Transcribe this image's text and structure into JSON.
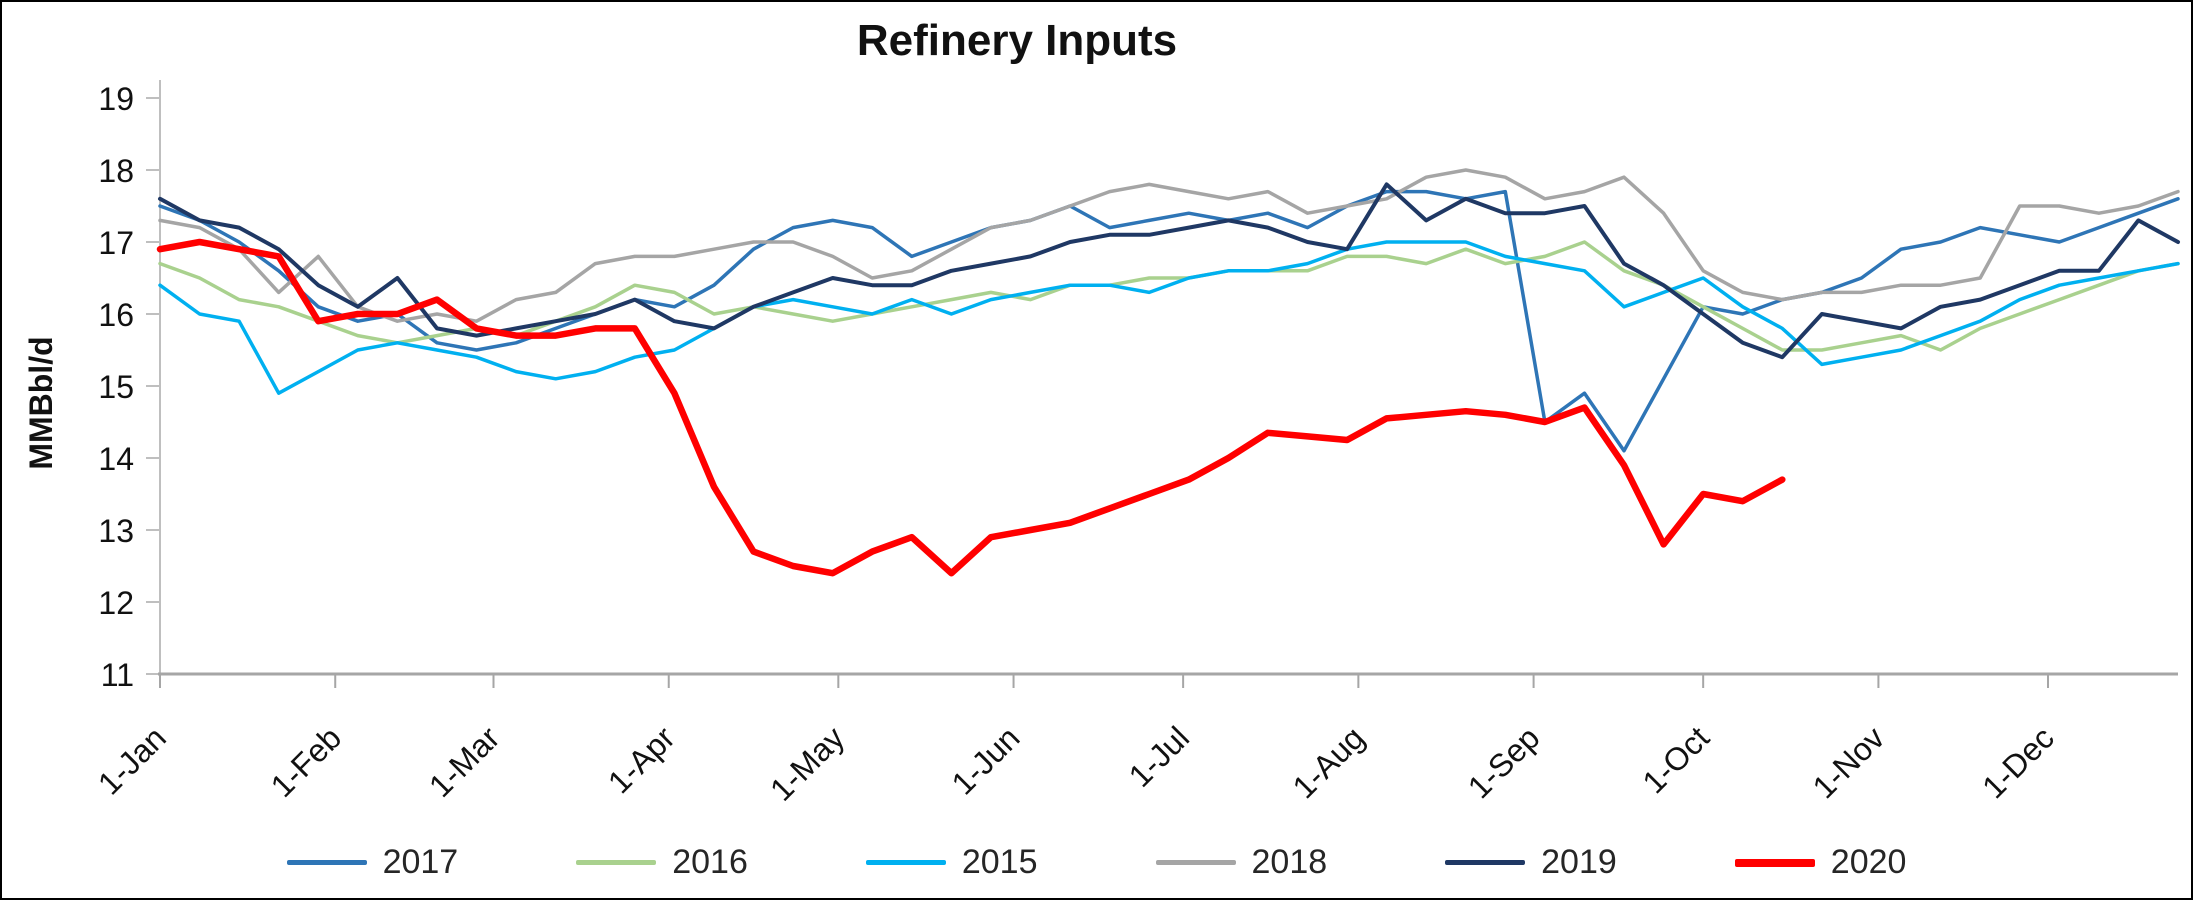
{
  "chart_data": {
    "type": "line",
    "title": "Refinery Inputs",
    "ylabel": "MMBbl/d",
    "ylim": [
      11,
      19
    ],
    "y_ticks": [
      19,
      18,
      17,
      16,
      15,
      14,
      13,
      12,
      11
    ],
    "x_tick_labels": [
      "1-Jan",
      "1-Feb",
      "1-Mar",
      "1-Apr",
      "1-May",
      "1-Jun",
      "1-Jul",
      "1-Aug",
      "1-Sep",
      "1-Oct",
      "1-Nov",
      "1-Dec"
    ],
    "x_tick_days": [
      0,
      31,
      59,
      90,
      120,
      151,
      181,
      212,
      243,
      273,
      304,
      334
    ],
    "x_max_day": 357,
    "x_unit": "weekly observations, 7 days apart starting 1-Jan",
    "grid": false,
    "legend_position": "bottom",
    "axis_color": "#A6A6A6",
    "tick_color": "#BFBFBF",
    "series": [
      {
        "name": "2017",
        "color": "#2E75B6",
        "line_width": 3.5,
        "values": [
          17.5,
          17.3,
          17.0,
          16.6,
          16.1,
          15.9,
          16.0,
          15.6,
          15.5,
          15.6,
          15.8,
          16.0,
          16.2,
          16.1,
          16.4,
          16.9,
          17.2,
          17.3,
          17.2,
          16.8,
          17.0,
          17.2,
          17.3,
          17.5,
          17.2,
          17.3,
          17.4,
          17.3,
          17.4,
          17.2,
          17.5,
          17.7,
          17.7,
          17.6,
          17.7,
          14.5,
          14.9,
          14.1,
          15.1,
          16.1,
          16.0,
          16.2,
          16.3,
          16.5,
          16.9,
          17.0,
          17.2,
          17.1,
          17.0,
          17.2,
          17.4,
          17.6
        ]
      },
      {
        "name": "2016",
        "color": "#A9D18E",
        "line_width": 3.5,
        "values": [
          16.7,
          16.5,
          16.2,
          16.1,
          15.9,
          15.7,
          15.6,
          15.7,
          15.8,
          15.7,
          15.9,
          16.1,
          16.4,
          16.3,
          16.0,
          16.1,
          16.0,
          15.9,
          16.0,
          16.1,
          16.2,
          16.3,
          16.2,
          16.4,
          16.4,
          16.5,
          16.5,
          16.6,
          16.6,
          16.6,
          16.8,
          16.8,
          16.7,
          16.9,
          16.7,
          16.8,
          17.0,
          16.6,
          16.4,
          16.1,
          15.8,
          15.5,
          15.5,
          15.6,
          15.7,
          15.5,
          15.8,
          16.0,
          16.2,
          16.4,
          16.6,
          16.7
        ]
      },
      {
        "name": "2015",
        "color": "#00B0F0",
        "line_width": 3.5,
        "values": [
          16.4,
          16.0,
          15.9,
          14.9,
          15.2,
          15.5,
          15.6,
          15.5,
          15.4,
          15.2,
          15.1,
          15.2,
          15.4,
          15.5,
          15.8,
          16.1,
          16.2,
          16.1,
          16.0,
          16.2,
          16.0,
          16.2,
          16.3,
          16.4,
          16.4,
          16.3,
          16.5,
          16.6,
          16.6,
          16.7,
          16.9,
          17.0,
          17.0,
          17.0,
          16.8,
          16.7,
          16.6,
          16.1,
          16.3,
          16.5,
          16.1,
          15.8,
          15.3,
          15.4,
          15.5,
          15.7,
          15.9,
          16.2,
          16.4,
          16.5,
          16.6,
          16.7
        ]
      },
      {
        "name": "2018",
        "color": "#A5A5A5",
        "line_width": 3.5,
        "values": [
          17.3,
          17.2,
          16.9,
          16.3,
          16.8,
          16.1,
          15.9,
          16.0,
          15.9,
          16.2,
          16.3,
          16.7,
          16.8,
          16.8,
          16.9,
          17.0,
          17.0,
          16.8,
          16.5,
          16.6,
          16.9,
          17.2,
          17.3,
          17.5,
          17.7,
          17.8,
          17.7,
          17.6,
          17.7,
          17.4,
          17.5,
          17.6,
          17.9,
          18.0,
          17.9,
          17.6,
          17.7,
          17.9,
          17.4,
          16.6,
          16.3,
          16.2,
          16.3,
          16.3,
          16.4,
          16.4,
          16.5,
          17.5,
          17.5,
          17.4,
          17.5,
          17.7
        ]
      },
      {
        "name": "2019",
        "color": "#1F3864",
        "line_width": 4,
        "values": [
          17.6,
          17.3,
          17.2,
          16.9,
          16.4,
          16.1,
          16.5,
          15.8,
          15.7,
          15.8,
          15.9,
          16.0,
          16.2,
          15.9,
          15.8,
          16.1,
          16.3,
          16.5,
          16.4,
          16.4,
          16.6,
          16.7,
          16.8,
          17.0,
          17.1,
          17.1,
          17.2,
          17.3,
          17.2,
          17.0,
          16.9,
          17.8,
          17.3,
          17.6,
          17.4,
          17.4,
          17.5,
          16.7,
          16.4,
          16.0,
          15.6,
          15.4,
          16.0,
          15.9,
          15.8,
          16.1,
          16.2,
          16.4,
          16.6,
          16.6,
          17.3,
          17.0
        ]
      },
      {
        "name": "2020",
        "color": "#FF0000",
        "line_width": 6.5,
        "values": [
          16.9,
          17.0,
          16.9,
          16.8,
          15.9,
          16.0,
          16.0,
          16.2,
          15.8,
          15.7,
          15.7,
          15.8,
          15.8,
          14.9,
          13.6,
          12.7,
          12.5,
          12.4,
          12.7,
          12.9,
          12.4,
          12.9,
          13.0,
          13.1,
          13.3,
          13.5,
          13.7,
          14.0,
          14.35,
          14.3,
          14.25,
          14.55,
          14.6,
          14.65,
          14.6,
          14.5,
          14.7,
          13.9,
          12.8,
          13.5,
          13.4,
          13.7
        ]
      }
    ]
  }
}
